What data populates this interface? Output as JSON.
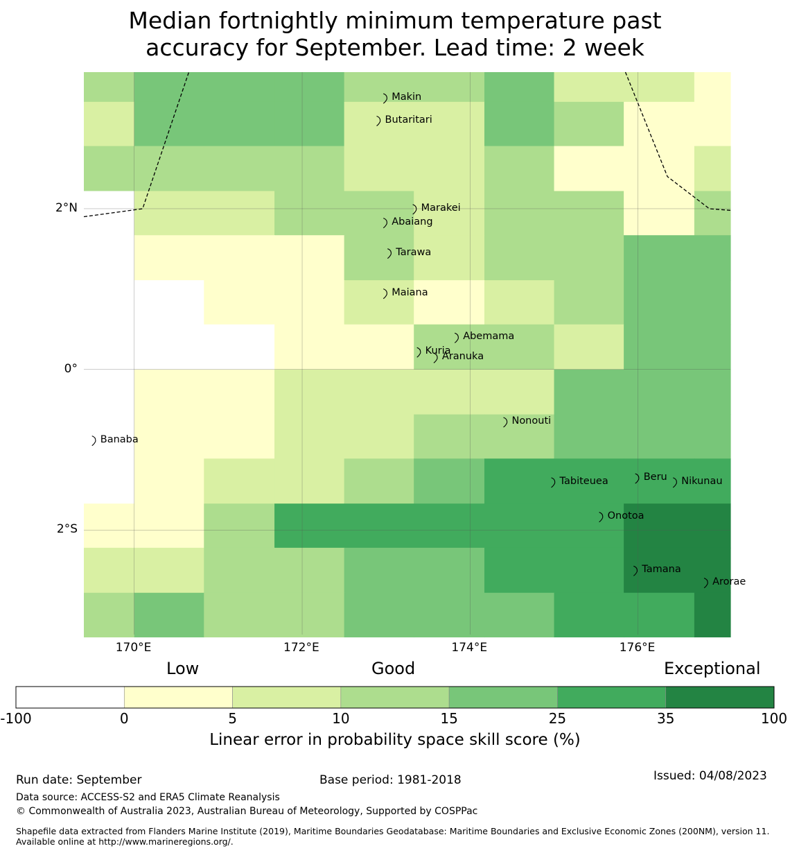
{
  "title_line1": "Median fortnightly minimum temperature past",
  "title_line2": "accuracy for September. Lead time: 2 week",
  "map": {
    "lon_range": [
      169.4,
      177.1
    ],
    "lat_range": [
      -3.3,
      3.7
    ],
    "lon_ticks": [
      {
        "value": 170,
        "label": "170°E"
      },
      {
        "value": 172,
        "label": "172°E"
      },
      {
        "value": 174,
        "label": "174°E"
      },
      {
        "value": 176,
        "label": "176°E"
      }
    ],
    "lat_ticks": [
      {
        "value": 2,
        "label": "2°N"
      },
      {
        "value": 0,
        "label": "0°"
      },
      {
        "value": -2,
        "label": "2°S"
      }
    ],
    "grid_lons": [
      169.4,
      170.0,
      170.83,
      171.67,
      172.5,
      173.33,
      174.17,
      175.0,
      175.83,
      176.67,
      177.1
    ],
    "grid_lats": [
      3.7,
      3.33,
      2.78,
      2.22,
      1.67,
      1.11,
      0.56,
      0.0,
      -0.56,
      -1.11,
      -1.67,
      -2.22,
      -2.78,
      -3.33
    ],
    "skill_grid": [
      [
        3,
        4,
        4,
        4,
        3,
        3,
        4,
        2,
        2,
        1
      ],
      [
        2,
        4,
        4,
        4,
        2,
        2,
        4,
        3,
        1,
        1
      ],
      [
        3,
        3,
        3,
        3,
        2,
        2,
        3,
        1,
        1,
        2
      ],
      [
        0,
        2,
        2,
        3,
        3,
        2,
        3,
        3,
        1,
        3
      ],
      [
        0,
        1,
        1,
        1,
        3,
        2,
        3,
        3,
        4,
        4
      ],
      [
        0,
        0,
        1,
        1,
        2,
        1,
        2,
        3,
        4,
        4
      ],
      [
        0,
        0,
        0,
        1,
        1,
        3,
        3,
        2,
        4,
        4
      ],
      [
        0,
        1,
        1,
        2,
        2,
        2,
        2,
        4,
        4,
        4
      ],
      [
        0,
        1,
        1,
        2,
        2,
        3,
        3,
        4,
        4,
        4
      ],
      [
        0,
        1,
        2,
        2,
        3,
        4,
        5,
        5,
        5,
        5
      ],
      [
        1,
        1,
        3,
        5,
        5,
        5,
        5,
        5,
        6,
        6
      ],
      [
        2,
        2,
        3,
        3,
        4,
        4,
        5,
        5,
        6,
        6
      ],
      [
        3,
        4,
        3,
        3,
        4,
        4,
        4,
        5,
        5,
        6
      ]
    ],
    "boundary_lines": [
      [
        [
          169.4,
          1.9
        ],
        [
          170.1,
          2.0
        ],
        [
          170.65,
          3.7
        ]
      ],
      [
        [
          175.85,
          3.7
        ],
        [
          176.35,
          2.4
        ],
        [
          176.85,
          2.0
        ],
        [
          177.1,
          1.98
        ]
      ]
    ],
    "islands": [
      {
        "name": "Makin",
        "lon": 173.0,
        "lat": 3.38
      },
      {
        "name": "Butaritari",
        "lon": 172.92,
        "lat": 3.1
      },
      {
        "name": "Marakei",
        "lon": 173.35,
        "lat": 2.0
      },
      {
        "name": "Abaiang",
        "lon": 173.0,
        "lat": 1.83
      },
      {
        "name": "Tarawa",
        "lon": 173.05,
        "lat": 1.45
      },
      {
        "name": "Maiana",
        "lon": 173.0,
        "lat": 0.95
      },
      {
        "name": "Abemama",
        "lon": 173.85,
        "lat": 0.4
      },
      {
        "name": "Kuria",
        "lon": 173.4,
        "lat": 0.22
      },
      {
        "name": "Aranuka",
        "lon": 173.6,
        "lat": 0.15
      },
      {
        "name": "Nonouti",
        "lon": 174.43,
        "lat": -0.65
      },
      {
        "name": "Banaba",
        "lon": 169.53,
        "lat": -0.88
      },
      {
        "name": "Tabiteuea",
        "lon": 175.0,
        "lat": -1.4
      },
      {
        "name": "Beru",
        "lon": 176.0,
        "lat": -1.35
      },
      {
        "name": "Nikunau",
        "lon": 176.45,
        "lat": -1.4
      },
      {
        "name": "Onotoa",
        "lon": 175.57,
        "lat": -1.83
      },
      {
        "name": "Tamana",
        "lon": 175.98,
        "lat": -2.5
      },
      {
        "name": "Arorae",
        "lon": 176.82,
        "lat": -2.65
      }
    ]
  },
  "colorbar": {
    "ticks": [
      "-100",
      "0",
      "5",
      "10",
      "15",
      "25",
      "35",
      "100"
    ],
    "colors": [
      "#ffffff",
      "#ffffcc",
      "#d9f0a3",
      "#addd8e",
      "#78c679",
      "#41ab5d",
      "#238443"
    ],
    "category_labels": {
      "low": "Low",
      "good": "Good",
      "exceptional": "Exceptional"
    },
    "axis_label": "Linear error in probability space skill score (%)"
  },
  "footer": {
    "run_date": "Run date: September",
    "base_period": "Base period: 1981-2018",
    "issued": "Issued: 04/08/2023",
    "data_source": "Data source: ACCESS-S2 and ERA5 Climate Reanalysis",
    "copyright": "© Commonwealth of Australia 2023, Australian Bureau of Meteorology, Supported by COSPPac",
    "shapefile": "Shapefile data extracted from Flanders Marine Institute (2019), Maritime Boundaries Geodatabase: Maritime Boundaries and Exclusive Economic Zones (200NM), version 11. Available online at http://www.marineregions.org/."
  }
}
